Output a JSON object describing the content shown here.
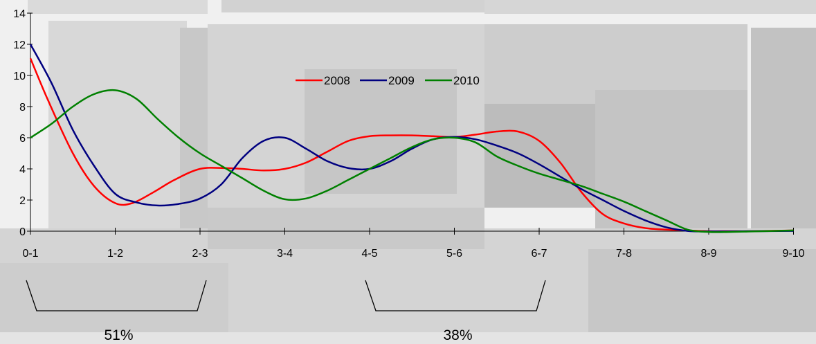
{
  "chart_data": {
    "type": "line",
    "title": "",
    "xlabel": "",
    "ylabel": "",
    "categories": [
      "0-1",
      "1-2",
      "2-3",
      "3-4",
      "4-5",
      "5-6",
      "6-7",
      "7-8",
      "8-9",
      "9-10"
    ],
    "ylim": [
      0,
      14
    ],
    "yticks": [
      0,
      2,
      4,
      6,
      8,
      10,
      12,
      14
    ],
    "grid": false,
    "legend_position": "center-top",
    "smooth": true,
    "series": [
      {
        "name": "2008",
        "color": "#ff0000",
        "points": [
          [
            0,
            11.1
          ],
          [
            0.2,
            8.5
          ],
          [
            0.5,
            5
          ],
          [
            0.75,
            2.9
          ],
          [
            1,
            1.8
          ],
          [
            1.2,
            1.8
          ],
          [
            1.45,
            2.5
          ],
          [
            1.7,
            3.3
          ],
          [
            2,
            4.0
          ],
          [
            2.3,
            4.05
          ],
          [
            2.5,
            4.0
          ],
          [
            2.75,
            3.9
          ],
          [
            3,
            4.0
          ],
          [
            3.25,
            4.4
          ],
          [
            3.5,
            5.1
          ],
          [
            3.75,
            5.8
          ],
          [
            4,
            6.1
          ],
          [
            4.25,
            6.15
          ],
          [
            4.5,
            6.15
          ],
          [
            4.75,
            6.1
          ],
          [
            5,
            6.05
          ],
          [
            5.25,
            6.2
          ],
          [
            5.5,
            6.4
          ],
          [
            5.75,
            6.4
          ],
          [
            6,
            5.8
          ],
          [
            6.25,
            4.4
          ],
          [
            6.5,
            2.5
          ],
          [
            6.75,
            1.1
          ],
          [
            7,
            0.5
          ],
          [
            7.25,
            0.2
          ],
          [
            7.5,
            0.1
          ],
          [
            7.75,
            0.05
          ],
          [
            8,
            0
          ],
          [
            8.25,
            0
          ],
          [
            8.5,
            0
          ],
          [
            9,
            0.05
          ]
        ]
      },
      {
        "name": "2009",
        "color": "#000080",
        "points": [
          [
            0,
            12
          ],
          [
            0.25,
            9.5
          ],
          [
            0.5,
            6.5
          ],
          [
            0.75,
            4.2
          ],
          [
            1,
            2.4
          ],
          [
            1.25,
            1.85
          ],
          [
            1.5,
            1.65
          ],
          [
            1.75,
            1.75
          ],
          [
            2,
            2.1
          ],
          [
            2.25,
            3.0
          ],
          [
            2.5,
            4.7
          ],
          [
            2.75,
            5.8
          ],
          [
            3,
            6.0
          ],
          [
            3.25,
            5.3
          ],
          [
            3.5,
            4.5
          ],
          [
            3.75,
            4.05
          ],
          [
            4,
            4.0
          ],
          [
            4.25,
            4.5
          ],
          [
            4.5,
            5.3
          ],
          [
            4.75,
            5.9
          ],
          [
            5,
            6.05
          ],
          [
            5.25,
            5.9
          ],
          [
            5.5,
            5.5
          ],
          [
            5.75,
            5.0
          ],
          [
            6,
            4.3
          ],
          [
            6.25,
            3.5
          ],
          [
            6.5,
            2.7
          ],
          [
            6.75,
            2.0
          ],
          [
            7,
            1.3
          ],
          [
            7.25,
            0.7
          ],
          [
            7.5,
            0.25
          ],
          [
            7.75,
            0.02
          ],
          [
            8,
            -0.02
          ],
          [
            8.5,
            0
          ],
          [
            9,
            0.02
          ]
        ]
      },
      {
        "name": "2010",
        "color": "#008000",
        "points": [
          [
            0,
            6.0
          ],
          [
            0.25,
            6.9
          ],
          [
            0.5,
            8.0
          ],
          [
            0.75,
            8.8
          ],
          [
            1,
            9.05
          ],
          [
            1.25,
            8.5
          ],
          [
            1.5,
            7.2
          ],
          [
            1.75,
            6.0
          ],
          [
            2,
            5.0
          ],
          [
            2.25,
            4.2
          ],
          [
            2.5,
            3.4
          ],
          [
            2.75,
            2.6
          ],
          [
            3,
            2.05
          ],
          [
            3.25,
            2.1
          ],
          [
            3.5,
            2.6
          ],
          [
            3.75,
            3.3
          ],
          [
            4,
            4.0
          ],
          [
            4.25,
            4.7
          ],
          [
            4.5,
            5.4
          ],
          [
            4.75,
            5.9
          ],
          [
            5,
            6.0
          ],
          [
            5.25,
            5.7
          ],
          [
            5.5,
            4.8
          ],
          [
            5.75,
            4.2
          ],
          [
            6,
            3.7
          ],
          [
            6.25,
            3.3
          ],
          [
            6.5,
            2.9
          ],
          [
            6.75,
            2.4
          ],
          [
            7,
            1.9
          ],
          [
            7.25,
            1.3
          ],
          [
            7.5,
            0.7
          ],
          [
            7.75,
            0.1
          ],
          [
            8,
            -0.05
          ],
          [
            8.25,
            -0.05
          ],
          [
            8.5,
            -0.02
          ],
          [
            9,
            0.05
          ]
        ]
      }
    ],
    "annotations": [
      {
        "label": "51%",
        "from": 0,
        "to": 2
      },
      {
        "label": "38%",
        "from": 4,
        "to": 6
      }
    ]
  }
}
